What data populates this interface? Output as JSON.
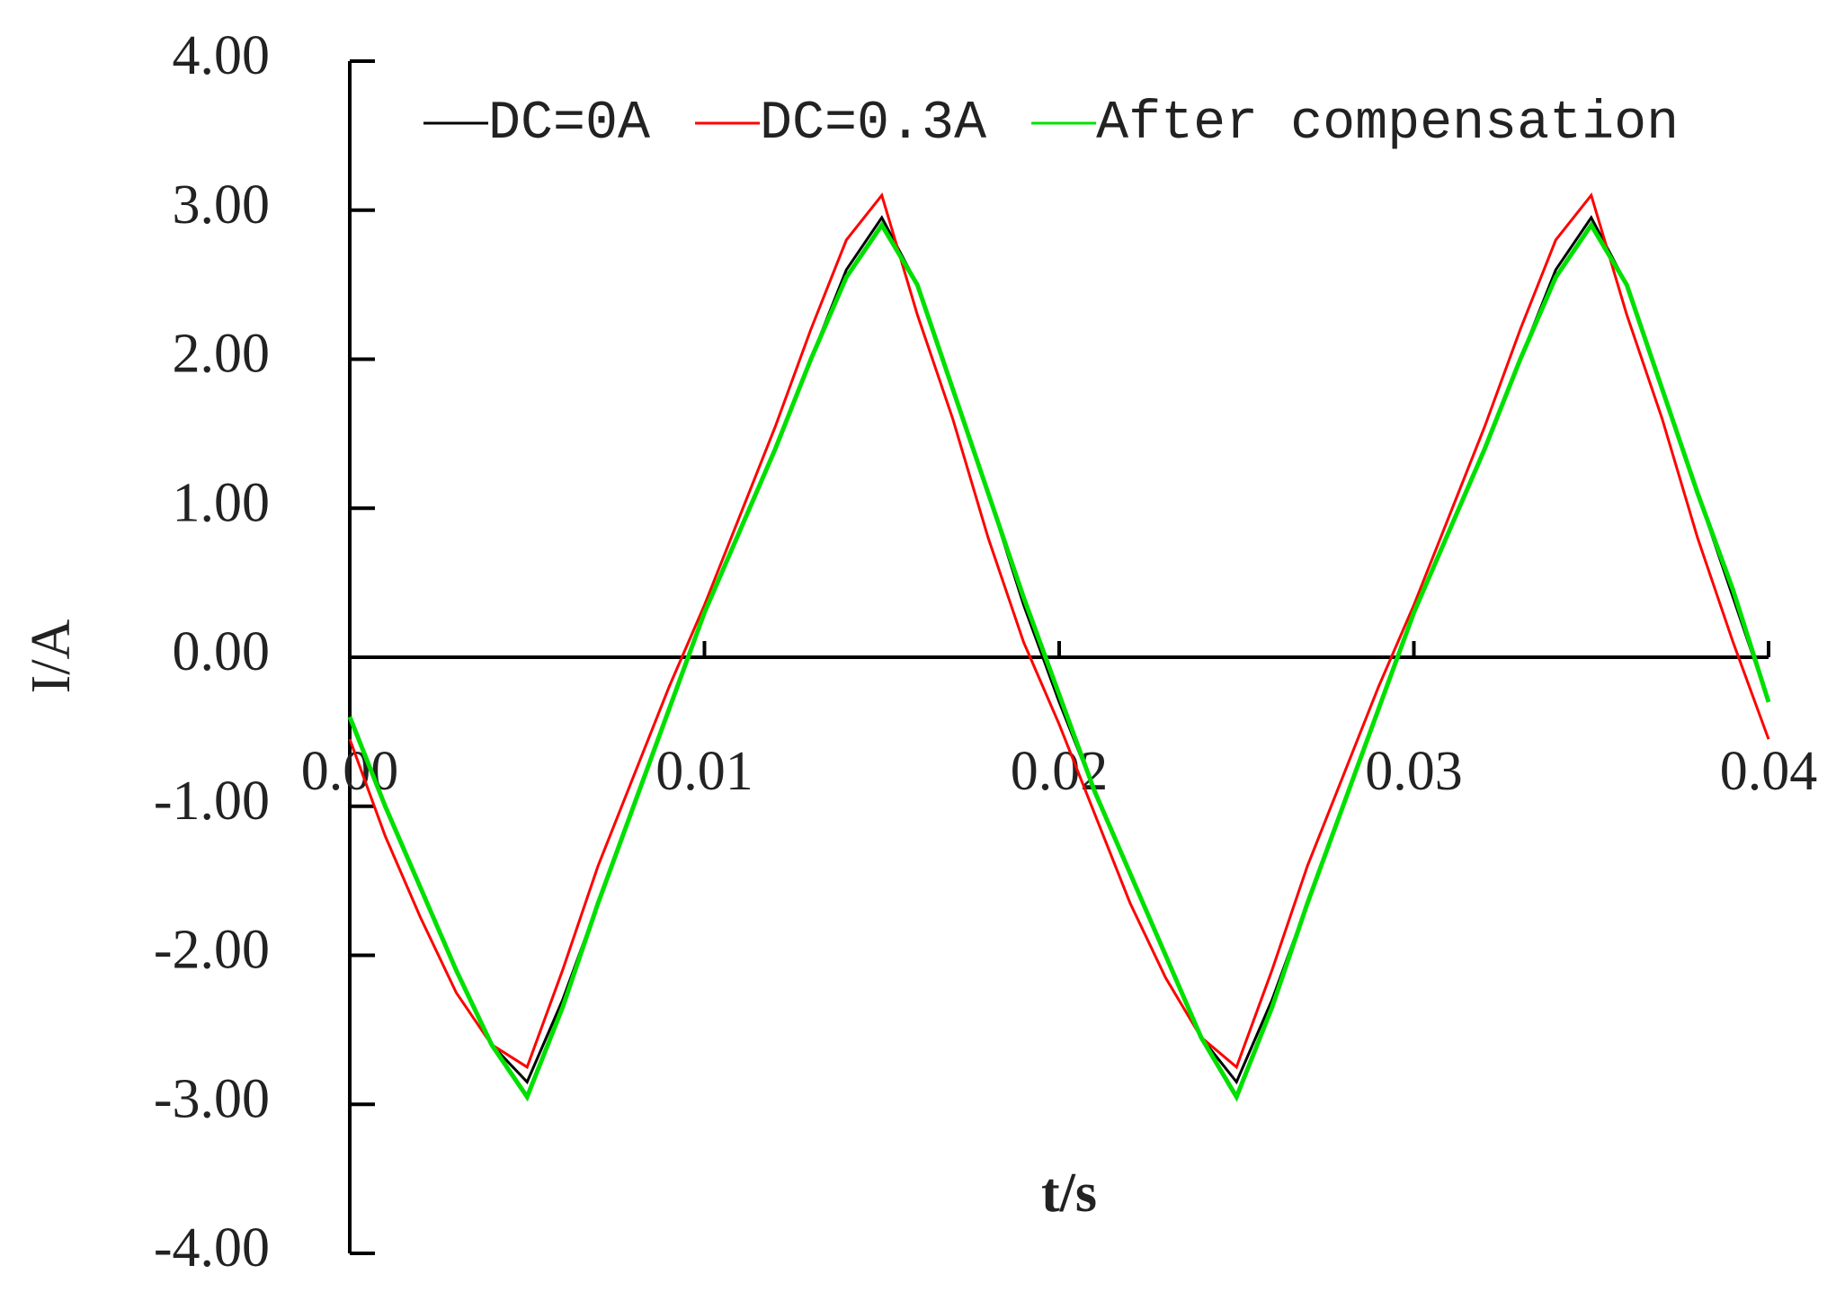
{
  "chart_data": {
    "type": "line",
    "x": [
      0,
      0.001,
      0.002,
      0.003,
      0.004,
      0.005,
      0.006,
      0.007,
      0.008,
      0.009,
      0.01,
      0.011,
      0.012,
      0.013,
      0.014,
      0.015,
      0.016,
      0.017,
      0.018,
      0.019,
      0.02,
      0.021,
      0.022,
      0.023,
      0.024,
      0.025,
      0.026,
      0.027,
      0.028,
      0.029,
      0.03,
      0.031,
      0.032,
      0.033,
      0.034,
      0.035,
      0.036,
      0.037,
      0.038,
      0.039,
      0.04
    ],
    "series": [
      {
        "name": "DC=0A",
        "color": "#000000",
        "values": [
          -0.4,
          -1.0,
          -1.55,
          -2.1,
          -2.6,
          -2.85,
          -2.3,
          -1.65,
          -1.0,
          -0.35,
          0.3,
          0.85,
          1.4,
          2.0,
          2.6,
          2.95,
          2.5,
          1.8,
          1.1,
          0.35,
          -0.3,
          -0.9,
          -1.45,
          -2.0,
          -2.55,
          -2.85,
          -2.3,
          -1.65,
          -1.0,
          -0.35,
          0.3,
          0.85,
          1.4,
          2.0,
          2.6,
          2.95,
          2.5,
          1.8,
          1.1,
          0.4,
          -0.3
        ]
      },
      {
        "name": "DC=0.3A",
        "color": "#ff0000",
        "values": [
          -0.55,
          -1.2,
          -1.75,
          -2.25,
          -2.6,
          -2.75,
          -2.1,
          -1.4,
          -0.8,
          -0.2,
          0.35,
          0.95,
          1.55,
          2.2,
          2.8,
          3.1,
          2.3,
          1.6,
          0.8,
          0.1,
          -0.45,
          -1.05,
          -1.65,
          -2.15,
          -2.55,
          -2.75,
          -2.1,
          -1.4,
          -0.8,
          -0.2,
          0.35,
          0.95,
          1.55,
          2.2,
          2.8,
          3.1,
          2.3,
          1.6,
          0.8,
          0.1,
          -0.55
        ]
      },
      {
        "name": "After compensation",
        "color": "#00e000",
        "values": [
          -0.4,
          -1.0,
          -1.55,
          -2.1,
          -2.6,
          -2.95,
          -2.35,
          -1.65,
          -1.0,
          -0.35,
          0.3,
          0.85,
          1.4,
          2.0,
          2.55,
          2.9,
          2.5,
          1.8,
          1.1,
          0.4,
          -0.25,
          -0.9,
          -1.45,
          -2.0,
          -2.55,
          -2.95,
          -2.35,
          -1.65,
          -1.0,
          -0.35,
          0.3,
          0.85,
          1.4,
          2.0,
          2.55,
          2.9,
          2.5,
          1.8,
          1.1,
          0.45,
          -0.3
        ]
      }
    ],
    "xlabel": "t/s",
    "ylabel": "I/A",
    "xlim": [
      0,
      0.04
    ],
    "xticks": [
      {
        "value": 0,
        "label": "0.00"
      },
      0.01,
      0.02,
      0.03,
      0.04
    ],
    "ylim": [
      -4,
      4
    ],
    "yticks": [
      {
        "value": -4,
        "label": "-4.00"
      },
      {
        "value": -3,
        "label": "-3.00"
      },
      {
        "value": -2,
        "label": "-2.00"
      },
      {
        "value": -1,
        "label": "-1.00"
      },
      {
        "value": 0,
        "label": "0.00"
      },
      {
        "value": 1,
        "label": "1.00"
      },
      {
        "value": 2,
        "label": "2.00"
      },
      {
        "value": 3,
        "label": "3.00"
      },
      {
        "value": 4,
        "label": "4.00"
      }
    ]
  }
}
